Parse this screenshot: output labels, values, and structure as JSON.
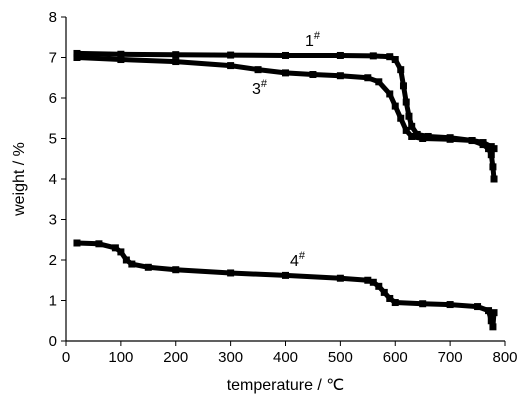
{
  "chart_data": {
    "type": "scatter",
    "title": "",
    "xlabel": "temperature / ℃",
    "ylabel": "weight / %",
    "xlim": [
      0,
      800
    ],
    "ylim": [
      0,
      8
    ],
    "xticks": [
      "0",
      "100",
      "200",
      "300",
      "400",
      "500",
      "600",
      "700",
      "800"
    ],
    "yticks": [
      "0",
      "1",
      "2",
      "3",
      "4",
      "5",
      "6",
      "7",
      "8"
    ],
    "grid": false,
    "legend": "none",
    "series": [
      {
        "name": "1",
        "sup": "#",
        "color": "#000000",
        "points": [
          [
            20,
            7.1
          ],
          [
            100,
            7.08
          ],
          [
            200,
            7.07
          ],
          [
            300,
            7.06
          ],
          [
            400,
            7.05
          ],
          [
            500,
            7.05
          ],
          [
            560,
            7.04
          ],
          [
            590,
            7.02
          ],
          [
            600,
            6.95
          ],
          [
            610,
            6.7
          ],
          [
            615,
            6.3
          ],
          [
            620,
            5.9
          ],
          [
            625,
            5.55
          ],
          [
            630,
            5.3
          ],
          [
            640,
            5.1
          ],
          [
            660,
            5.05
          ],
          [
            700,
            5.02
          ],
          [
            740,
            4.95
          ],
          [
            760,
            4.85
          ],
          [
            770,
            4.75
          ],
          [
            775,
            4.6
          ],
          [
            778,
            4.3
          ],
          [
            780,
            4.0
          ]
        ]
      },
      {
        "name": "3",
        "sup": "#",
        "color": "#000000",
        "points": [
          [
            20,
            7.0
          ],
          [
            100,
            6.95
          ],
          [
            200,
            6.9
          ],
          [
            300,
            6.8
          ],
          [
            350,
            6.7
          ],
          [
            400,
            6.62
          ],
          [
            450,
            6.58
          ],
          [
            500,
            6.55
          ],
          [
            550,
            6.5
          ],
          [
            570,
            6.4
          ],
          [
            590,
            6.1
          ],
          [
            600,
            5.8
          ],
          [
            610,
            5.5
          ],
          [
            620,
            5.2
          ],
          [
            630,
            5.05
          ],
          [
            650,
            5.0
          ],
          [
            700,
            4.98
          ],
          [
            740,
            4.95
          ],
          [
            760,
            4.9
          ],
          [
            775,
            4.8
          ],
          [
            780,
            4.75
          ]
        ]
      },
      {
        "name": "4",
        "sup": "#",
        "color": "#000000",
        "points": [
          [
            20,
            2.42
          ],
          [
            60,
            2.4
          ],
          [
            90,
            2.3
          ],
          [
            100,
            2.2
          ],
          [
            110,
            2.0
          ],
          [
            120,
            1.9
          ],
          [
            150,
            1.82
          ],
          [
            200,
            1.76
          ],
          [
            300,
            1.68
          ],
          [
            400,
            1.62
          ],
          [
            500,
            1.55
          ],
          [
            550,
            1.5
          ],
          [
            560,
            1.45
          ],
          [
            570,
            1.35
          ],
          [
            580,
            1.2
          ],
          [
            590,
            1.05
          ],
          [
            600,
            0.95
          ],
          [
            650,
            0.92
          ],
          [
            700,
            0.9
          ],
          [
            750,
            0.85
          ],
          [
            770,
            0.75
          ],
          [
            775,
            0.5
          ],
          [
            778,
            0.35
          ],
          [
            780,
            0.7
          ]
        ]
      }
    ]
  }
}
